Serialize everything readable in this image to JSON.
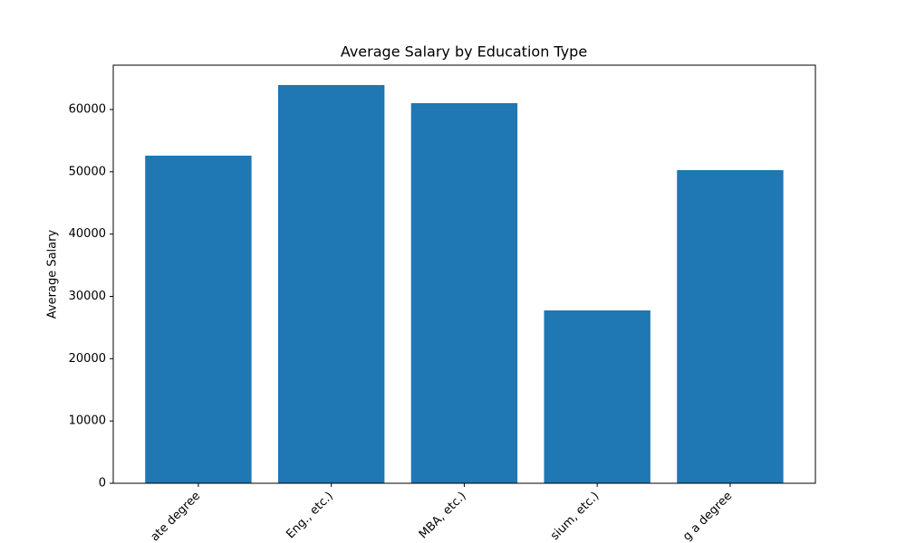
{
  "chart_data": {
    "type": "bar",
    "title": "Average Salary by Education Type",
    "y_label": "Average Salary",
    "categories": [
      "ate degree",
      "Eng., etc.)",
      "MBA, etc.)",
      "sium, etc.)",
      "g a degree"
    ],
    "values": [
      52590,
      63930,
      61020,
      27750,
      50270
    ],
    "color": "#1f77b4",
    "ylim": [
      0,
      67120
    ],
    "yticks": [
      0,
      10000,
      20000,
      30000,
      40000,
      50000,
      60000
    ],
    "grid": false
  }
}
